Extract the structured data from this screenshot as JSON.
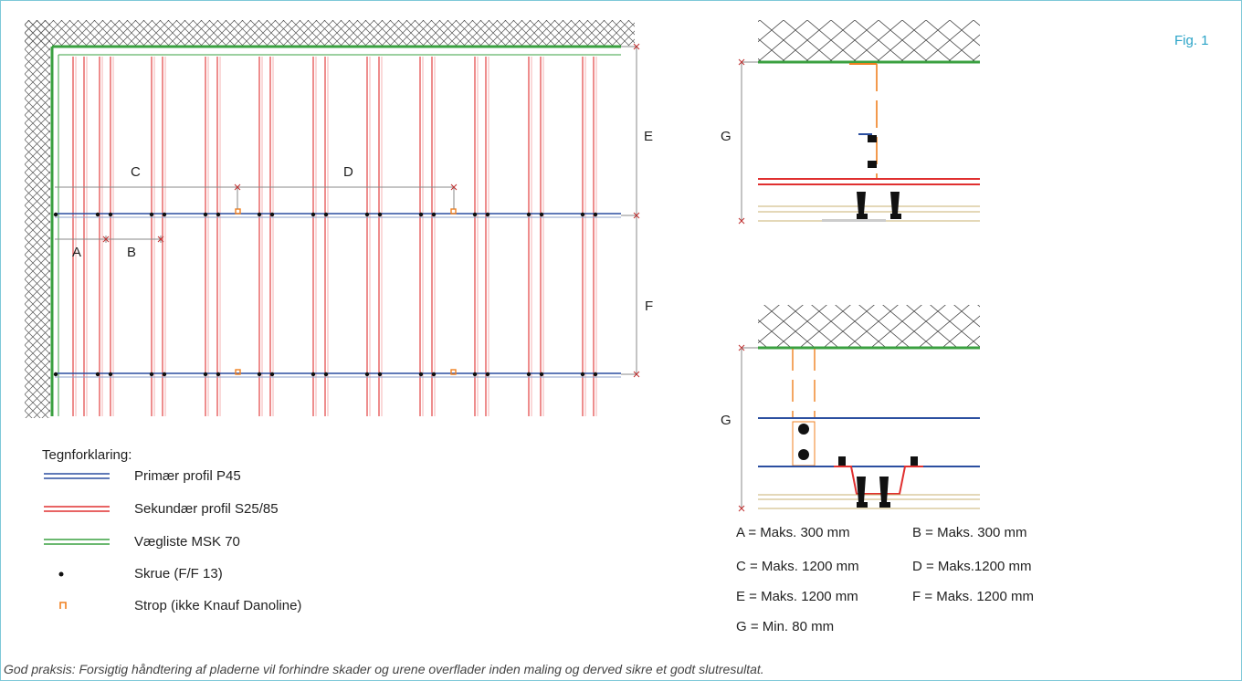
{
  "figure_label": "Fig. 1",
  "plan_dimension_labels": {
    "a": "A",
    "b": "B",
    "c": "C",
    "d": "D",
    "e": "E",
    "f": "F"
  },
  "section_labels": {
    "top_g": "G",
    "bottom_g": "G"
  },
  "legend": {
    "title": "Tegnforklaring:",
    "items": [
      {
        "text": "Primær profil P45",
        "color": "#2b4fa0",
        "symbol": "double-line"
      },
      {
        "text": "Sekundær profil S25/85",
        "color": "#e03030",
        "symbol": "double-line"
      },
      {
        "text": "Vægliste MSK 70",
        "color": "#3aa040",
        "symbol": "double-line"
      },
      {
        "text": "Skrue (F/F 13)",
        "color": "#111111",
        "symbol": "dot"
      },
      {
        "text": "Strop (ikke Knauf Danoline)",
        "color": "#f08020",
        "symbol": "bracket"
      }
    ]
  },
  "specs": [
    "A = Maks. 300 mm",
    "B = Maks. 300 mm",
    "C = Maks. 1200 mm",
    "D =  Maks.1200 mm",
    "E = Maks. 1200 mm",
    "F = Maks. 1200 mm",
    "G = Min. 80 mm"
  ],
  "footer": "God praksis: Forsigtig håndtering af pladerne vil forhindre skader og urene overflader inden maling og derved sikre et godt slutresultat.",
  "colors": {
    "primary": "#2b4fa0",
    "secondary": "#e03030",
    "wall": "#3aa040",
    "strap": "#f08020",
    "accent": "#2aa3c7"
  }
}
